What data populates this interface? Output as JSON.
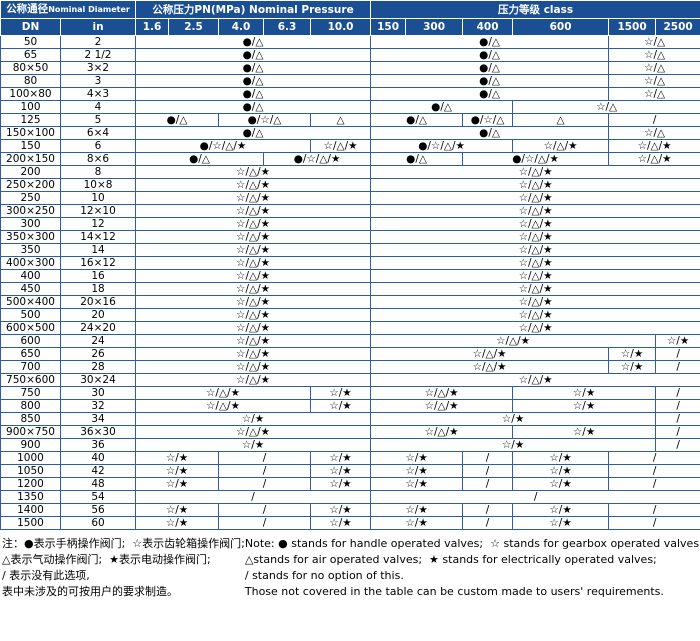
{
  "header": {
    "nominal_diameter_cn": "公称通径",
    "nominal_diameter_en": "Nominal Diameter",
    "nominal_pressure": "公称压力PN(MPa) Nominal Pressure",
    "pressure_class": "压力等级 class",
    "dn": "DN",
    "in": "in",
    "pn_columns": [
      "1.6",
      "2.5",
      "4.0",
      "6.3",
      "10.0"
    ],
    "class_columns": [
      "150",
      "300",
      "400",
      "600",
      "1500",
      "2500"
    ]
  },
  "rows": [
    {
      "dn": "50",
      "in": "2",
      "cells": [
        {
          "text": "●/△",
          "cols": 5
        },
        {
          "text": "●/△",
          "cols": 4
        },
        {
          "text": "☆/△",
          "cols": 2
        }
      ]
    },
    {
      "dn": "65",
      "in": "2 1/2",
      "cells": [
        {
          "text": "●/△",
          "cols": 5
        },
        {
          "text": "●/△",
          "cols": 4
        },
        {
          "text": "☆/△",
          "cols": 2
        }
      ]
    },
    {
      "dn": "80×50",
      "in": "3×2",
      "cells": [
        {
          "text": "●/△",
          "cols": 5
        },
        {
          "text": "●/△",
          "cols": 4
        },
        {
          "text": "☆/△",
          "cols": 2
        }
      ]
    },
    {
      "dn": "80",
      "in": "3",
      "cells": [
        {
          "text": "●/△",
          "cols": 5
        },
        {
          "text": "●/△",
          "cols": 4
        },
        {
          "text": "☆/△",
          "cols": 2
        }
      ]
    },
    {
      "dn": "100×80",
      "in": "4×3",
      "cells": [
        {
          "text": "●/△",
          "cols": 5
        },
        {
          "text": "●/△",
          "cols": 4
        },
        {
          "text": "☆/△",
          "cols": 2
        }
      ]
    },
    {
      "dn": "100",
      "in": "4",
      "cells": [
        {
          "text": "●/△",
          "cols": 5
        },
        {
          "text": "●/△",
          "cols": 3
        },
        {
          "text": "☆/△",
          "cols": 3
        }
      ]
    },
    {
      "dn": "125",
      "in": "5",
      "cells": [
        {
          "text": "●/△",
          "cols": 2
        },
        {
          "text": "●/☆/△",
          "cols": 2
        },
        {
          "text": "△",
          "cols": 1
        },
        {
          "text": "●/△",
          "cols": 2
        },
        {
          "text": "●/☆/△",
          "cols": 1
        },
        {
          "text": "△",
          "cols": 1
        },
        {
          "text": "/",
          "cols": 2
        }
      ]
    },
    {
      "dn": "150×100",
      "in": "6×4",
      "cells": [
        {
          "text": "●/△",
          "cols": 5
        },
        {
          "text": "●/△",
          "cols": 4
        },
        {
          "text": "☆/△",
          "cols": 2
        }
      ]
    },
    {
      "dn": "150",
      "in": "6",
      "cells": [
        {
          "text": "●/☆/△/★",
          "cols": 4
        },
        {
          "text": "☆/△/★",
          "cols": 1
        },
        {
          "text": "●/☆/△/★",
          "cols": 3
        },
        {
          "text": "☆/△/★",
          "cols": 1
        },
        {
          "text": "☆/△/★",
          "cols": 2
        }
      ]
    },
    {
      "dn": "200×150",
      "in": "8×6",
      "cells": [
        {
          "text": "●/△",
          "cols": 3
        },
        {
          "text": "●/☆/△/★",
          "cols": 2
        },
        {
          "text": "●/△",
          "cols": 2
        },
        {
          "text": "●/☆/△/★",
          "cols": 2
        },
        {
          "text": "☆/△/★",
          "cols": 2
        }
      ]
    },
    {
      "dn": "200",
      "in": "8",
      "cells": [
        {
          "text": "☆/△/★",
          "cols": 5
        },
        {
          "text": "☆/△/★",
          "cols": 6
        }
      ]
    },
    {
      "dn": "250×200",
      "in": "10×8",
      "cells": [
        {
          "text": "☆/△/★",
          "cols": 5
        },
        {
          "text": "☆/△/★",
          "cols": 6
        }
      ]
    },
    {
      "dn": "250",
      "in": "10",
      "cells": [
        {
          "text": "☆/△/★",
          "cols": 5
        },
        {
          "text": "☆/△/★",
          "cols": 6
        }
      ]
    },
    {
      "dn": "300×250",
      "in": "12×10",
      "cells": [
        {
          "text": "☆/△/★",
          "cols": 5
        },
        {
          "text": "☆/△/★",
          "cols": 6
        }
      ]
    },
    {
      "dn": "300",
      "in": "12",
      "cells": [
        {
          "text": "☆/△/★",
          "cols": 5
        },
        {
          "text": "☆/△/★",
          "cols": 6
        }
      ]
    },
    {
      "dn": "350×300",
      "in": "14×12",
      "cells": [
        {
          "text": "☆/△/★",
          "cols": 5
        },
        {
          "text": "☆/△/★",
          "cols": 6
        }
      ]
    },
    {
      "dn": "350",
      "in": "14",
      "cells": [
        {
          "text": "☆/△/★",
          "cols": 5
        },
        {
          "text": "☆/△/★",
          "cols": 6
        }
      ]
    },
    {
      "dn": "400×300",
      "in": "16×12",
      "cells": [
        {
          "text": "☆/△/★",
          "cols": 5
        },
        {
          "text": "☆/△/★",
          "cols": 6
        }
      ]
    },
    {
      "dn": "400",
      "in": "16",
      "cells": [
        {
          "text": "☆/△/★",
          "cols": 5
        },
        {
          "text": "☆/△/★",
          "cols": 6
        }
      ]
    },
    {
      "dn": "450",
      "in": "18",
      "cells": [
        {
          "text": "☆/△/★",
          "cols": 5
        },
        {
          "text": "☆/△/★",
          "cols": 6
        }
      ]
    },
    {
      "dn": "500×400",
      "in": "20×16",
      "cells": [
        {
          "text": "☆/△/★",
          "cols": 5
        },
        {
          "text": "☆/△/★",
          "cols": 6
        }
      ]
    },
    {
      "dn": "500",
      "in": "20",
      "cells": [
        {
          "text": "☆/△/★",
          "cols": 5
        },
        {
          "text": "☆/△/★",
          "cols": 6
        }
      ]
    },
    {
      "dn": "600×500",
      "in": "24×20",
      "cells": [
        {
          "text": "☆/△/★",
          "cols": 5
        },
        {
          "text": "☆/△/★",
          "cols": 6
        }
      ]
    },
    {
      "dn": "600",
      "in": "24",
      "cells": [
        {
          "text": "☆/△/★",
          "cols": 5
        },
        {
          "text": "☆/△/★",
          "cols": 5
        },
        {
          "text": "☆/★",
          "cols": 1
        }
      ]
    },
    {
      "dn": "650",
      "in": "26",
      "cells": [
        {
          "text": "☆/△/★",
          "cols": 5
        },
        {
          "text": "☆/△/★",
          "cols": 4
        },
        {
          "text": "☆/★",
          "cols": 1
        },
        {
          "text": "/",
          "cols": 1
        }
      ]
    },
    {
      "dn": "700",
      "in": "28",
      "cells": [
        {
          "text": "☆/△/★",
          "cols": 5
        },
        {
          "text": "☆/△/★",
          "cols": 4
        },
        {
          "text": "☆/★",
          "cols": 1
        },
        {
          "text": "/",
          "cols": 1
        }
      ]
    },
    {
      "dn": "750×600",
      "in": "30×24",
      "cells": [
        {
          "text": "☆/△/★",
          "cols": 5
        },
        {
          "text": "☆/△/★",
          "cols": 6
        }
      ]
    },
    {
      "dn": "750",
      "in": "30",
      "cells": [
        {
          "text": "☆/△/★",
          "cols": 4
        },
        {
          "text": "☆/★",
          "cols": 1
        },
        {
          "text": "☆/△/★",
          "cols": 3
        },
        {
          "text": "☆/★",
          "cols": 2
        },
        {
          "text": "/",
          "cols": 1
        }
      ]
    },
    {
      "dn": "800",
      "in": "32",
      "cells": [
        {
          "text": "☆/△/★",
          "cols": 4
        },
        {
          "text": "☆/★",
          "cols": 1
        },
        {
          "text": "☆/△/★",
          "cols": 3
        },
        {
          "text": "☆/★",
          "cols": 2
        },
        {
          "text": "/",
          "cols": 1
        }
      ]
    },
    {
      "dn": "850",
      "in": "34",
      "cells": [
        {
          "text": "☆/★",
          "cols": 5
        },
        {
          "text": "☆/★",
          "cols": 5
        },
        {
          "text": "/",
          "cols": 1
        }
      ]
    },
    {
      "dn": "900×750",
      "in": "36×30",
      "cells": [
        {
          "text": "☆/△/★",
          "cols": 5
        },
        {
          "text": "☆/△/★",
          "cols": 3
        },
        {
          "text": "☆/★",
          "cols": 2
        },
        {
          "text": "/",
          "cols": 1
        }
      ]
    },
    {
      "dn": "900",
      "in": "36",
      "cells": [
        {
          "text": "☆/★",
          "cols": 5
        },
        {
          "text": "☆/★",
          "cols": 5
        },
        {
          "text": "/",
          "cols": 1
        }
      ]
    },
    {
      "dn": "1000",
      "in": "40",
      "cells": [
        {
          "text": "☆/★",
          "cols": 2
        },
        {
          "text": "/",
          "cols": 2
        },
        {
          "text": "☆/★",
          "cols": 1
        },
        {
          "text": "☆/★",
          "cols": 2
        },
        {
          "text": "/",
          "cols": 1
        },
        {
          "text": "☆/★",
          "cols": 1
        },
        {
          "text": "/",
          "cols": 2
        }
      ]
    },
    {
      "dn": "1050",
      "in": "42",
      "cells": [
        {
          "text": "☆/★",
          "cols": 2
        },
        {
          "text": "/",
          "cols": 2
        },
        {
          "text": "☆/★",
          "cols": 1
        },
        {
          "text": "☆/★",
          "cols": 2
        },
        {
          "text": "/",
          "cols": 1
        },
        {
          "text": "☆/★",
          "cols": 1
        },
        {
          "text": "/",
          "cols": 2
        }
      ]
    },
    {
      "dn": "1200",
      "in": "48",
      "cells": [
        {
          "text": "☆/★",
          "cols": 2
        },
        {
          "text": "/",
          "cols": 2
        },
        {
          "text": "☆/★",
          "cols": 1
        },
        {
          "text": "☆/★",
          "cols": 2
        },
        {
          "text": "/",
          "cols": 1
        },
        {
          "text": "☆/★",
          "cols": 1
        },
        {
          "text": "/",
          "cols": 2
        }
      ]
    },
    {
      "dn": "1350",
      "in": "54",
      "cells": [
        {
          "text": "/",
          "cols": 5
        },
        {
          "text": "/",
          "cols": 6
        }
      ]
    },
    {
      "dn": "1400",
      "in": "56",
      "cells": [
        {
          "text": "☆/★",
          "cols": 2
        },
        {
          "text": "/",
          "cols": 2
        },
        {
          "text": "☆/★",
          "cols": 1
        },
        {
          "text": "☆/★",
          "cols": 2
        },
        {
          "text": "/",
          "cols": 1
        },
        {
          "text": "☆/★",
          "cols": 1
        },
        {
          "text": "/",
          "cols": 2
        }
      ]
    },
    {
      "dn": "1500",
      "in": "60",
      "cells": [
        {
          "text": "☆/★",
          "cols": 2
        },
        {
          "text": "/",
          "cols": 2
        },
        {
          "text": "☆/★",
          "cols": 1
        },
        {
          "text": "☆/★",
          "cols": 2
        },
        {
          "text": "/",
          "cols": 1
        },
        {
          "text": "☆/★",
          "cols": 1
        },
        {
          "text": "/",
          "cols": 2
        }
      ]
    }
  ],
  "notes": {
    "cn": [
      "注：●表示手柄操作阀门;  ☆表示齿轮箱操作阀门;",
      "△表示气动操作阀门;  ★表示电动操作阀门;",
      "/ 表示没有此选项,",
      "表中未涉及的可按用户的要求制造。"
    ],
    "en": [
      "Note: ● stands for handle operated valves;  ☆ stands for gearbox operated valves;",
      "△stands for air operated valves;  ★ stands for electrically operated valves;",
      "/ stands for no option of this.",
      "Those not covered in the table can be custom made to users' requirements."
    ]
  }
}
